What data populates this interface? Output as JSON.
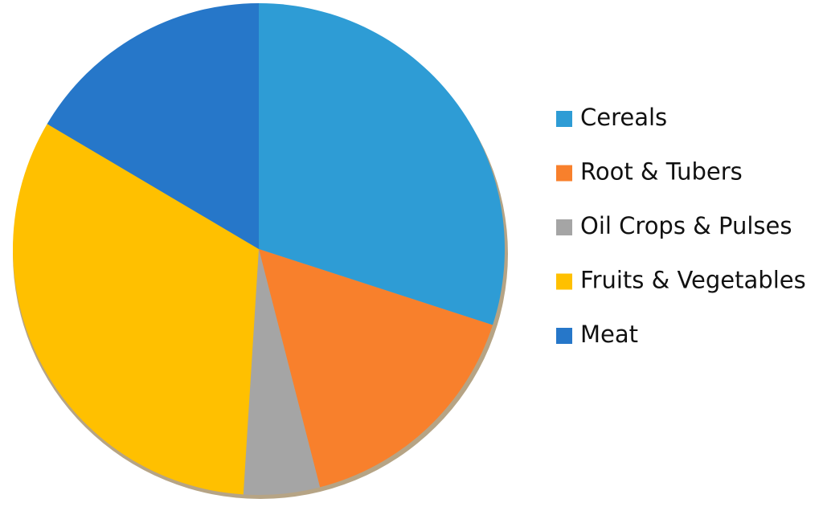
{
  "chart_data": {
    "type": "pie",
    "categories": [
      "Cereals",
      "Root & Tubers",
      "Oil Crops & Pulses",
      "Fruits & Vegetables",
      "Meat"
    ],
    "values": [
      30,
      16,
      5,
      32.5,
      16.5
    ],
    "colors": [
      "#2e9cd5",
      "#f8802c",
      "#a5a5a5",
      "#ffc000",
      "#2677c9"
    ],
    "legend": "right"
  }
}
